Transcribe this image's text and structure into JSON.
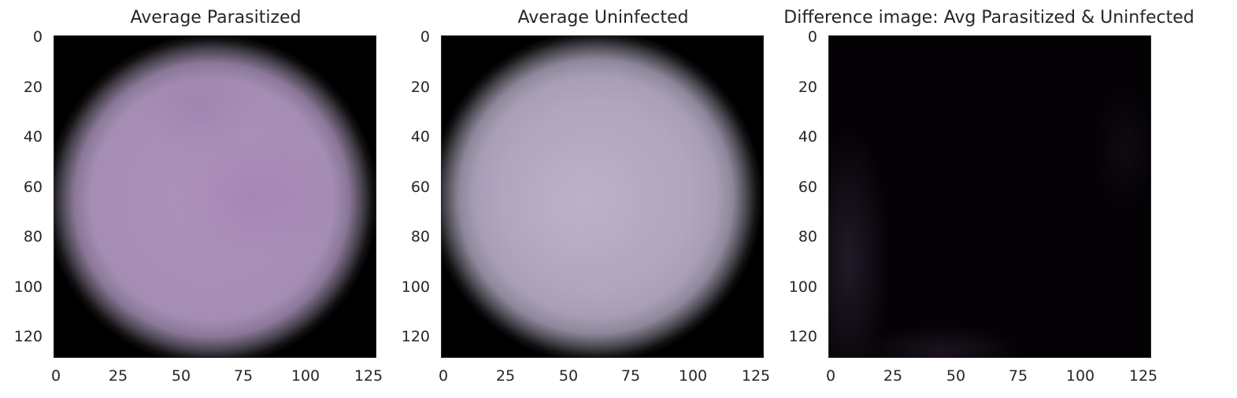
{
  "panels": [
    {
      "title": "Average Parasitized",
      "x_ticks": [
        "0",
        "25",
        "50",
        "75",
        "100",
        "125"
      ],
      "y_ticks": [
        "0",
        "20",
        "40",
        "60",
        "80",
        "100",
        "120"
      ]
    },
    {
      "title": "Average Uninfected",
      "x_ticks": [
        "0",
        "25",
        "50",
        "75",
        "100",
        "125"
      ],
      "y_ticks": [
        "0",
        "20",
        "40",
        "60",
        "80",
        "100",
        "120"
      ]
    },
    {
      "title": "Difference image: Avg Parasitized & Uninfected",
      "x_ticks": [
        "0",
        "25",
        "50",
        "75",
        "100",
        "125"
      ],
      "y_ticks": [
        "0",
        "20",
        "40",
        "60",
        "80",
        "100",
        "120"
      ]
    }
  ],
  "colors": {
    "parasitized_cell": "#a98fb8",
    "uninfected_cell": "#b1a6bf",
    "difference_background": "#040205"
  }
}
